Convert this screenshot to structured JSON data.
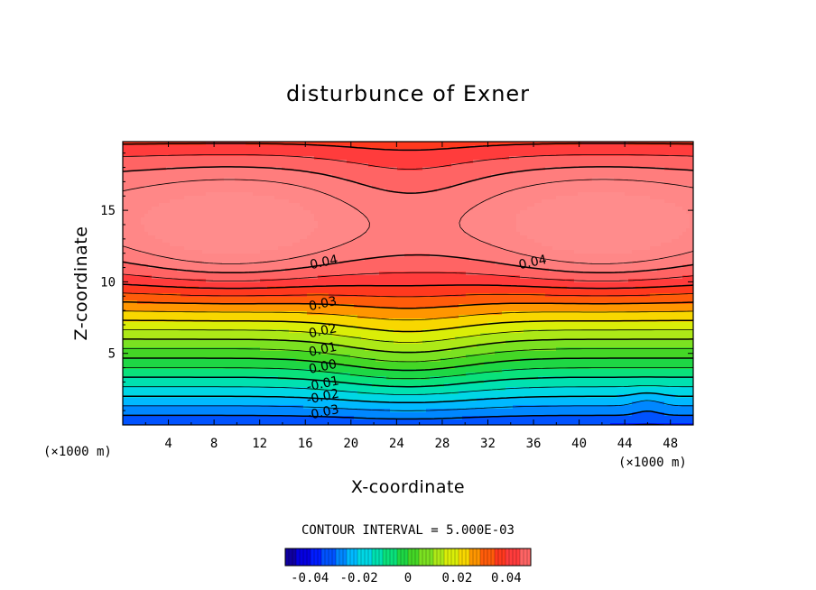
{
  "chart_data": {
    "type": "heatmap",
    "title": "disturbunce of Exner",
    "xlabel": "X-coordinate",
    "ylabel": "Z-coordinate",
    "x_unit": "(×1000 m)",
    "xlim": [
      0,
      50
    ],
    "ylim": [
      0,
      19.8
    ],
    "x_ticks": [
      4,
      8,
      12,
      16,
      20,
      24,
      28,
      32,
      36,
      40,
      44,
      48
    ],
    "y_ticks": [
      5,
      10,
      15
    ],
    "contour_interval_text": "CONTOUR INTERVAL = 5.000E-03",
    "contour_labels": [
      {
        "text": "0.04",
        "x": 17.7,
        "z": 11.1
      },
      {
        "text": "0.04",
        "x": 36.0,
        "z": 11.1
      },
      {
        "text": "0.03",
        "x": 17.6,
        "z": 8.2
      },
      {
        "text": "0.02",
        "x": 17.6,
        "z": 6.3
      },
      {
        "text": "0.01",
        "x": 17.6,
        "z": 5.0
      },
      {
        "text": "0.00",
        "x": 17.6,
        "z": 3.8
      },
      {
        "text": "-0.01",
        "x": 17.6,
        "z": 2.6
      },
      {
        "text": "-0.02",
        "x": 17.6,
        "z": 1.7
      },
      {
        "text": "-0.03",
        "x": 17.6,
        "z": 0.6
      }
    ],
    "colorbar": {
      "min": -0.05,
      "max": 0.05,
      "tick_labels": [
        "-0.04",
        "-0.02",
        "0",
        "0.02",
        "0.04"
      ],
      "tick_values": [
        -0.04,
        -0.02,
        0,
        0.02,
        0.04
      ]
    }
  }
}
